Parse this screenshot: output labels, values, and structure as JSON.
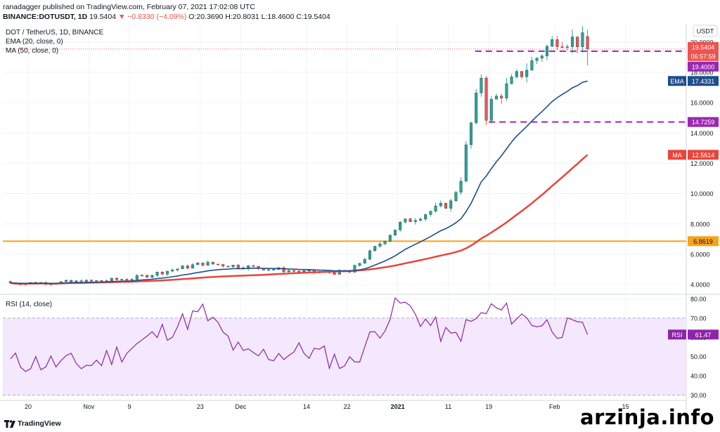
{
  "header": {
    "line1": "ranadagger published on TradingView.com, February 07, 2021 17:02:08 UTC",
    "line2_symbol": "BINANCE:DOTUSDT, 1D",
    "line2_price": "19.5404",
    "line2_change": "▼ −0.8330 (−4.09%)",
    "line2_ohlc": "O:20.3690 H:20.8031 L:18.4600 C:19.5404"
  },
  "legend": {
    "title": "DOT / TetherUS, 1D, BINANCE",
    "ema": "EMA (20, close, 0)",
    "ma": "MA (50, close, 0)",
    "rsi": "RSI (14, close)"
  },
  "axis": {
    "currency": "USDT",
    "price_ticks": [
      "20.0000",
      "18.0000",
      "16.0000",
      "14.0000",
      "12.0000",
      "10.0000",
      "8.0000",
      "6.0000",
      "4.0000"
    ],
    "rsi_ticks": [
      "80.00",
      "70.00",
      "60.00",
      "50.00",
      "40.00",
      "30.00"
    ],
    "date_ticks": [
      "20",
      "Nov",
      "9",
      "23",
      "Dec",
      "14",
      "22",
      "2021",
      "11",
      "19",
      "Feb",
      "15"
    ]
  },
  "labels": {
    "last_price": "19.5404",
    "countdown": "06:57:59",
    "resistance": "19.4000",
    "ema": "EMA",
    "ema_value": "17.4331",
    "support": "14.7259",
    "ma": "MA",
    "ma_value": "12.5614",
    "horizontal": "6.8619",
    "rsi": "RSI",
    "rsi_value": "61.47"
  },
  "branding": {
    "tradingview": "TradingView",
    "watermark": "arzinja.info"
  },
  "colors": {
    "up": "#26a69a",
    "down": "#ef5350",
    "ema": "#1e4d8c",
    "ma": "#e8453c",
    "horizontal": "#f7a21b",
    "levels": "#9c27b0",
    "rsi_line": "#8e24aa",
    "rsi_band": "#f3e8fd"
  },
  "chart_data": [
    {
      "type": "candlestick",
      "title": "DOT / TetherUS, 1D, BINANCE",
      "dates": [
        "2020-10-20",
        "2020-11-01",
        "2020-11-09",
        "2020-11-23",
        "2020-12-01",
        "2020-12-14",
        "2020-12-22",
        "2021-01-01",
        "2021-01-11",
        "2021-01-19",
        "2021-02-01",
        "2021-02-15"
      ],
      "date_labels": [
        "20",
        "Nov",
        "9",
        "23",
        "Dec",
        "14",
        "22",
        "2021",
        "11",
        "19",
        "Feb",
        "15"
      ],
      "close": [
        4.1,
        4.2,
        4.4,
        5.4,
        5.2,
        4.8,
        4.8,
        8.0,
        9.4,
        16.0,
        20.3,
        19.54
      ],
      "ohlc_last": {
        "open": 20.369,
        "high": 20.8031,
        "low": 18.46,
        "close": 19.5404
      },
      "ema20": {
        "last": 17.4331
      },
      "ma50": {
        "last": 12.5614
      },
      "levels": {
        "resistance": 19.4,
        "support": 14.7259,
        "horizontal": 6.8619
      },
      "ylim": [
        3.4,
        21.2
      ]
    },
    {
      "type": "line",
      "title": "RSI (14, close)",
      "x": [
        "2020-10-20",
        "2020-11-01",
        "2020-11-09",
        "2020-11-23",
        "2020-12-01",
        "2020-12-14",
        "2020-12-22",
        "2021-01-01",
        "2021-01-11",
        "2021-01-19",
        "2021-02-01",
        "2021-02-15"
      ],
      "values": [
        47,
        46,
        55,
        73,
        50,
        53,
        46,
        78,
        59,
        75,
        65,
        61.47
      ],
      "band": [
        30,
        70
      ],
      "ylim": [
        28,
        82
      ]
    }
  ]
}
